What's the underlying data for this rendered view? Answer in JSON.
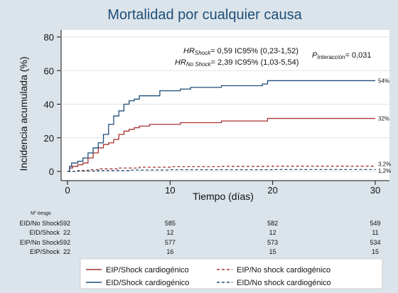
{
  "chart_data": {
    "type": "line",
    "title": "Mortalidad por cualquier causa",
    "xlabel": "Tiempo (días)",
    "ylabel": "Incidencia acumulada (%)",
    "xlim": [
      0,
      30
    ],
    "ylim": [
      0,
      80
    ],
    "xticks": [
      "0",
      "10",
      "20",
      "30"
    ],
    "yticks": [
      "0",
      "20",
      "40",
      "60",
      "80"
    ],
    "annotations": {
      "hr_shock": {
        "label": "HR",
        "sub": "Shock",
        "text": "= 0,59 IC95% (0,23-1,52)"
      },
      "hr_noshock": {
        "label": "HR",
        "sub": "No Shock",
        "text": "= 2,39 IC95% (1,03-5,54)"
      },
      "p_interaction": {
        "label": "P",
        "sub": "Interacción",
        "text": "= 0,031"
      }
    },
    "series": [
      {
        "name": "EIP/Shock cardiogénico",
        "color": "#a83232",
        "dash": "solid",
        "end_label": "32%",
        "points": [
          [
            0,
            0
          ],
          [
            0.2,
            2
          ],
          [
            0.5,
            3
          ],
          [
            1,
            4
          ],
          [
            1.5,
            5
          ],
          [
            2,
            8
          ],
          [
            2.5,
            11
          ],
          [
            3,
            14
          ],
          [
            3.5,
            16
          ],
          [
            4,
            17
          ],
          [
            4.5,
            19
          ],
          [
            5,
            22
          ],
          [
            5.5,
            24
          ],
          [
            6,
            25
          ],
          [
            6.5,
            26
          ],
          [
            7,
            27
          ],
          [
            8,
            28
          ],
          [
            10,
            28
          ],
          [
            11,
            29
          ],
          [
            15,
            30
          ],
          [
            19,
            30
          ],
          [
            19.5,
            31.5
          ],
          [
            30,
            31.5
          ]
        ]
      },
      {
        "name": "EID/Shock cardiogénico",
        "color": "#1f4e79",
        "dash": "solid",
        "end_label": "54%",
        "points": [
          [
            0,
            0
          ],
          [
            0.2,
            3
          ],
          [
            0.4,
            5
          ],
          [
            1,
            6
          ],
          [
            1.5,
            8
          ],
          [
            2,
            11
          ],
          [
            2.5,
            14
          ],
          [
            3,
            17
          ],
          [
            3.5,
            22
          ],
          [
            4,
            28
          ],
          [
            4.5,
            33
          ],
          [
            5,
            36
          ],
          [
            5.5,
            40
          ],
          [
            6,
            42
          ],
          [
            6.5,
            43
          ],
          [
            7,
            45
          ],
          [
            8,
            45
          ],
          [
            9,
            48
          ],
          [
            10,
            48
          ],
          [
            11,
            49
          ],
          [
            12,
            50
          ],
          [
            15,
            51
          ],
          [
            19,
            52
          ],
          [
            19.5,
            54
          ],
          [
            30,
            54
          ]
        ]
      },
      {
        "name": "EIP/No shock cardiogénico",
        "color": "#a83232",
        "dash": "dash",
        "end_label": "3,2%",
        "points": [
          [
            0,
            0
          ],
          [
            1,
            0.5
          ],
          [
            2,
            1
          ],
          [
            3,
            1.5
          ],
          [
            5,
            2
          ],
          [
            7,
            2.5
          ],
          [
            10,
            2.8
          ],
          [
            15,
            3
          ],
          [
            20,
            3.1
          ],
          [
            30,
            3.2
          ]
        ]
      },
      {
        "name": "EID/No shock cardiogénico",
        "color": "#1f4e79",
        "dash": "dash",
        "end_label": "1,2%",
        "points": [
          [
            0,
            0
          ],
          [
            1,
            0.2
          ],
          [
            3,
            0.5
          ],
          [
            6,
            0.8
          ],
          [
            10,
            1
          ],
          [
            20,
            1.1
          ],
          [
            30,
            1.2
          ]
        ]
      }
    ],
    "risk_table": {
      "header": "Nº riesgo",
      "rows": [
        {
          "label": "EID/No Shock",
          "values": [
            "592",
            "585",
            "582",
            "549"
          ]
        },
        {
          "label": "EID/Shock",
          "values": [
            "22",
            "12",
            "12",
            "11"
          ]
        },
        {
          "label": "EIP/No Shock",
          "values": [
            "592",
            "577",
            "573",
            "534"
          ]
        },
        {
          "label": "EIP/Shock",
          "values": [
            "22",
            "16",
            "15",
            "15"
          ]
        }
      ]
    },
    "legend": [
      {
        "label": "EIP/Shock cardiogénico",
        "color": "#a83232",
        "dash": "solid"
      },
      {
        "label": "EIP/No shock cardiogénico",
        "color": "#a83232",
        "dash": "dash"
      },
      {
        "label": "EID/Shock cardiogénico",
        "color": "#1f4e79",
        "dash": "solid"
      },
      {
        "label": "EID/No shock cardiogénico",
        "color": "#1f4e79",
        "dash": "dash"
      }
    ]
  }
}
